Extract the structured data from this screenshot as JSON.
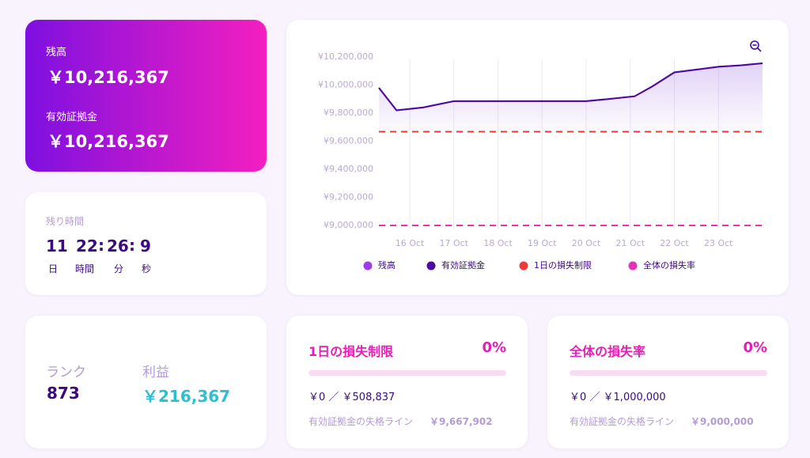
{
  "balance_card": {
    "balance_label": "残高",
    "balance": "￥10,216,367",
    "equity_label": "有効証拠金",
    "equity": "￥10,216,367"
  },
  "countdown": {
    "label": "残り時間",
    "separator": ":",
    "units": [
      {
        "value": "11",
        "label": "日"
      },
      {
        "value": "22",
        "label": "時間"
      },
      {
        "value": "26",
        "label": "分"
      },
      {
        "value": "9",
        "label": "秒"
      }
    ]
  },
  "rank_card": {
    "rank_label": "ランク",
    "rank": "873",
    "profit_label": "利益",
    "profit": "￥216,367"
  },
  "loss_cards": [
    {
      "title": "1日の損失制限",
      "percent": "0%",
      "amount": "￥0 ／ ￥508,837",
      "line_label": "有効証拠金の失格ライン",
      "line_value": "￥9,667,902"
    },
    {
      "title": "全体の損失率",
      "percent": "0%",
      "amount": "￥0 ／ ￥1,000,000",
      "line_label": "有効証拠金の失格ライン",
      "line_value": "￥9,000,000"
    }
  ],
  "chart_data": {
    "type": "line",
    "x": [
      15.3,
      15.7,
      16.3,
      17,
      18,
      19,
      20,
      20.5,
      21.1,
      21.5,
      22,
      22.5,
      23,
      23.5,
      24
    ],
    "xlim": [
      15.3,
      24
    ],
    "xticks": [
      {
        "value": 16,
        "label": "16 Oct"
      },
      {
        "value": 17,
        "label": "17 Oct"
      },
      {
        "value": 18,
        "label": "18 Oct"
      },
      {
        "value": 19,
        "label": "19 Oct"
      },
      {
        "value": 20,
        "label": "20 Oct"
      },
      {
        "value": 21,
        "label": "21 Oct"
      },
      {
        "value": 22,
        "label": "22 Oct"
      },
      {
        "value": 23,
        "label": "23 Oct"
      }
    ],
    "ylim": [
      9000000,
      10200000
    ],
    "yticks": [
      {
        "value": 9000000,
        "label": "¥9,000,000"
      },
      {
        "value": 9200000,
        "label": "¥9,200,000"
      },
      {
        "value": 9400000,
        "label": "¥9,400,000"
      },
      {
        "value": 9600000,
        "label": "¥9,600,000"
      },
      {
        "value": 9800000,
        "label": "¥9,800,000"
      },
      {
        "value": 10000000,
        "label": "¥10,000,000"
      },
      {
        "value": 10200000,
        "label": "¥10,200,000"
      }
    ],
    "series": [
      {
        "name": "残高",
        "color": "#9b3ee8",
        "values": [
          9980000,
          9820000,
          9840000,
          9885000,
          9885000,
          9885000,
          9885000,
          9900000,
          9920000,
          9990000,
          10090000,
          10110000,
          10130000,
          10140000,
          10155000
        ]
      },
      {
        "name": "有効証拠金",
        "color": "#4a0aa0",
        "values": [
          9980000,
          9820000,
          9840000,
          9885000,
          9885000,
          9885000,
          9885000,
          9900000,
          9920000,
          9990000,
          10090000,
          10110000,
          10130000,
          10140000,
          10155000
        ]
      },
      {
        "name": "1日の損失制限",
        "color": "#f03a3a",
        "value": 9667902
      },
      {
        "name": "全体の損失率",
        "color": "#e632b4",
        "value": 9000000
      }
    ]
  }
}
